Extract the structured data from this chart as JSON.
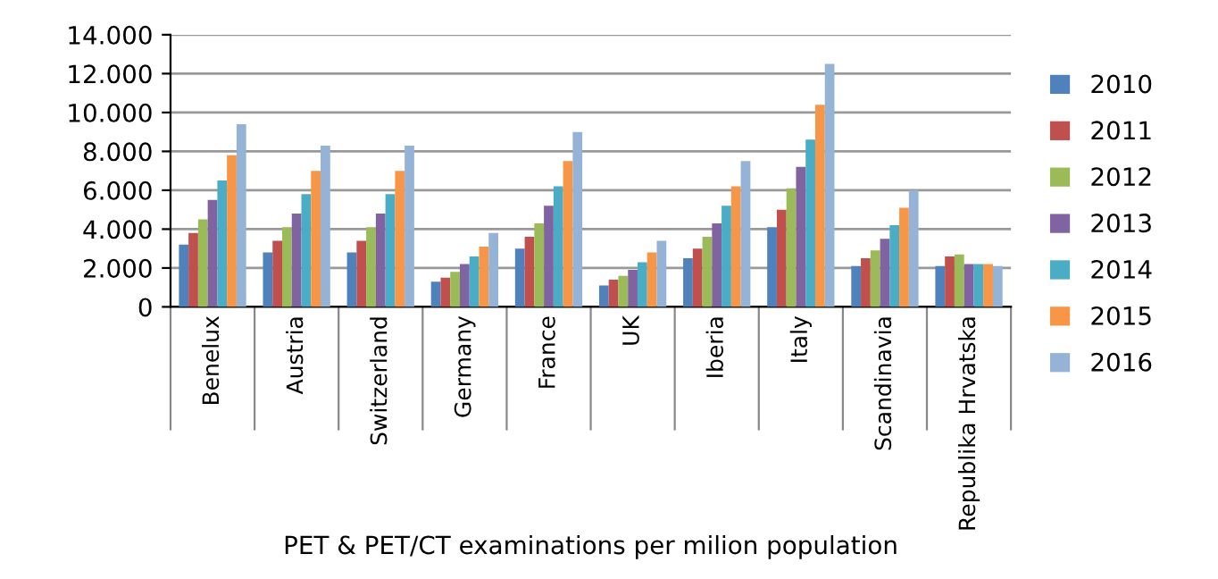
{
  "chart_data": {
    "type": "bar",
    "xlabel": "PET & PET/CT examinations per milion population",
    "categories": [
      "Benelux",
      "Austria",
      "Switzerland",
      "Germany",
      "France",
      "UK",
      "Iberia",
      "Italy",
      "Scandinavia",
      "Republika Hrvatska"
    ],
    "series": [
      {
        "name": "2010",
        "color": "#4f81bd",
        "values": [
          3200,
          2800,
          2800,
          1300,
          3000,
          1100,
          2500,
          4100,
          2100,
          2100
        ]
      },
      {
        "name": "2011",
        "color": "#c0504d",
        "values": [
          3800,
          3400,
          3400,
          1500,
          3600,
          1400,
          3000,
          5000,
          2500,
          2600
        ]
      },
      {
        "name": "2012",
        "color": "#9bbb59",
        "values": [
          4500,
          4100,
          4100,
          1800,
          4300,
          1600,
          3600,
          6100,
          2900,
          2700
        ]
      },
      {
        "name": "2013",
        "color": "#8064a2",
        "values": [
          5500,
          4800,
          4800,
          2200,
          5200,
          1900,
          4300,
          7200,
          3500,
          2200
        ]
      },
      {
        "name": "2014",
        "color": "#4bacc6",
        "values": [
          6500,
          5800,
          5800,
          2600,
          6200,
          2300,
          5200,
          8600,
          4200,
          2200
        ]
      },
      {
        "name": "2015",
        "color": "#f79646",
        "values": [
          7800,
          7000,
          7000,
          3100,
          7500,
          2800,
          6200,
          10400,
          5100,
          2200
        ]
      },
      {
        "name": "2016",
        "color": "#95b3d7",
        "values": [
          9400,
          8300,
          8300,
          3800,
          9000,
          3400,
          7500,
          12500,
          6000,
          2100
        ]
      }
    ],
    "ylim": [
      0,
      14000
    ],
    "yticks": [
      0,
      {
        "value": 2000,
        "label": "2.000"
      },
      {
        "value": 4000,
        "label": "4.000"
      },
      {
        "value": 6000,
        "label": "6.000"
      },
      {
        "value": 8000,
        "label": "8.000"
      },
      {
        "value": 10000,
        "label": "10.000"
      },
      {
        "value": 12000,
        "label": "12.000"
      },
      {
        "value": 14000,
        "label": "14.000"
      }
    ],
    "grid": "y",
    "legend": "right"
  }
}
